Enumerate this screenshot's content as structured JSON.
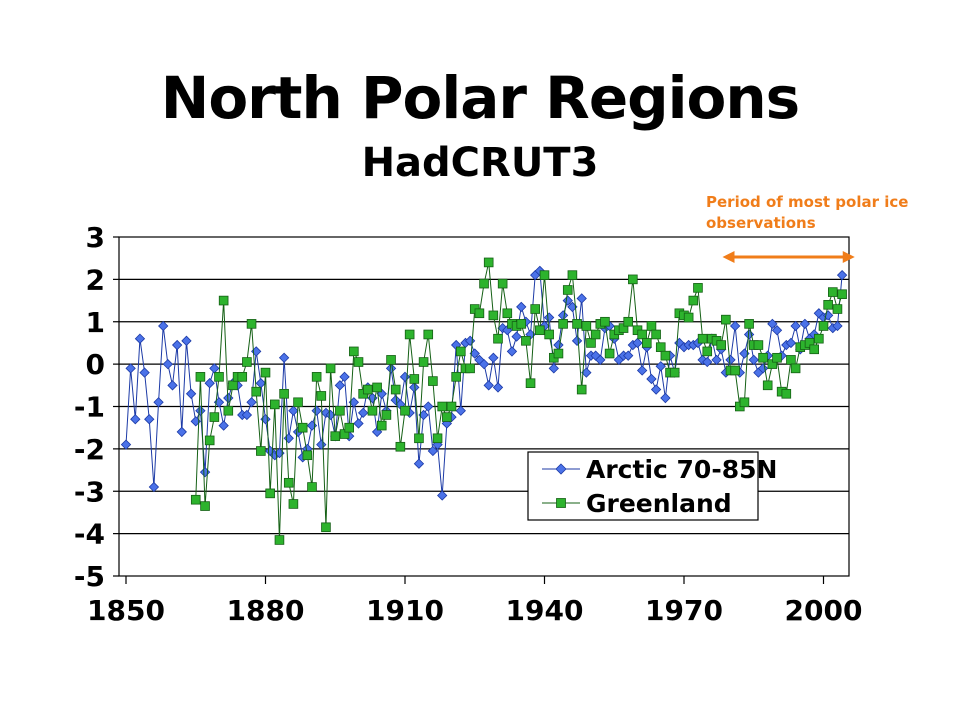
{
  "colors": {
    "arctic": "#4b72e8",
    "arctic_edge": "#1c3aa6",
    "greenland": "#2db32d",
    "greenland_edge": "#156015",
    "annotation": "#f07d1a"
  },
  "annotation": {
    "text": "Period of most polar ice observations",
    "arrow_x_range": [
      1980,
      2005
    ]
  },
  "chart_data": {
    "type": "line",
    "title": "North Polar Regions",
    "subtitle": "HadCRUT3",
    "xlabel": "",
    "ylabel": "",
    "xlim": [
      1850,
      2006
    ],
    "ylim": [
      -5,
      3
    ],
    "x_ticks": [
      1850,
      1880,
      1910,
      1940,
      1970,
      2000
    ],
    "y_ticks": [
      3,
      2,
      1,
      0,
      -1,
      -2,
      -3,
      -4,
      -5
    ],
    "y_tick_labels": [
      "3",
      "2",
      "1",
      "0",
      "-1",
      "-2",
      "-3",
      "-4",
      "-5"
    ],
    "grid": "horizontal",
    "legend": "bottom-right",
    "series": [
      {
        "name": "Arctic 70-85N",
        "marker": "diamond",
        "x_start": 1850,
        "values": [
          -1.9,
          -0.1,
          -1.3,
          0.6,
          -0.2,
          -1.3,
          -2.9,
          -0.9,
          0.9,
          0.0,
          -0.5,
          0.45,
          -1.6,
          0.55,
          -0.7,
          -1.35,
          -1.1,
          -2.55,
          -0.45,
          -0.1,
          -0.9,
          -1.45,
          -0.8,
          -0.45,
          -0.5,
          -1.2,
          -1.2,
          -0.9,
          0.3,
          -0.45,
          -1.3,
          -2.05,
          -2.15,
          -2.1,
          0.15,
          -1.75,
          -1.1,
          -1.6,
          -2.2,
          -2.0,
          -1.45,
          -1.1,
          -1.9,
          -1.15,
          -1.2,
          -1.7,
          -0.5,
          -0.3,
          -1.7,
          -0.9,
          -1.4,
          -1.15,
          -0.55,
          -0.8,
          -1.6,
          -0.7,
          -1.1,
          -0.1,
          -0.85,
          -0.95,
          -0.3,
          -1.15,
          -0.55,
          -2.35,
          -1.2,
          -1.0,
          -2.05,
          -1.9,
          -3.1,
          -1.4,
          -1.25,
          0.45,
          -1.1,
          0.5,
          0.55,
          0.25,
          0.1,
          0.0,
          -0.5,
          0.15,
          -0.55,
          0.85,
          0.8,
          0.3,
          0.65,
          1.35,
          1.0,
          0.7,
          2.1,
          2.2,
          0.9,
          1.1,
          -0.1,
          0.45,
          1.15,
          1.5,
          1.35,
          0.55,
          1.55,
          -0.2,
          0.2,
          0.2,
          0.1,
          0.85,
          0.9,
          0.6,
          0.1,
          0.2,
          0.2,
          0.45,
          0.5,
          -0.15,
          0.4,
          -0.35,
          -0.6,
          -0.05,
          -0.8,
          0.2,
          -0.2,
          0.5,
          0.4,
          0.45,
          0.45,
          0.5,
          0.1,
          0.05,
          0.6,
          0.1,
          0.35,
          -0.2,
          0.1,
          0.9,
          -0.2,
          0.25,
          0.7,
          0.1,
          -0.2,
          -0.1,
          0.2,
          0.95,
          0.8,
          0.2,
          0.45,
          0.5,
          0.9,
          0.35,
          0.95,
          0.6,
          0.7,
          1.2,
          1.1,
          1.15,
          0.85,
          0.9,
          2.1
        ]
      },
      {
        "name": "Greenland",
        "marker": "square",
        "x_start": 1865,
        "values": [
          -3.2,
          -0.3,
          -3.35,
          -1.8,
          -1.25,
          -0.3,
          1.5,
          -1.1,
          -0.5,
          -0.3,
          -0.3,
          0.05,
          0.95,
          -0.65,
          -2.05,
          -0.2,
          -3.05,
          -0.95,
          -4.15,
          -0.7,
          -2.8,
          -3.3,
          -0.9,
          -1.5,
          -2.15,
          -2.9,
          -0.3,
          -0.75,
          -3.85,
          -0.1,
          -1.7,
          -1.1,
          -1.65,
          -1.5,
          0.3,
          0.05,
          -0.7,
          -0.6,
          -1.1,
          -0.55,
          -1.45,
          -1.2,
          0.1,
          -0.6,
          -1.95,
          -1.1,
          0.7,
          -0.35,
          -1.75,
          0.05,
          0.7,
          -0.4,
          -1.75,
          -1.0,
          -1.25,
          -1.0,
          -0.3,
          0.3,
          -0.1,
          -0.1,
          1.3,
          1.2,
          1.9,
          2.4,
          1.15,
          0.6,
          1.9,
          1.2,
          0.95,
          0.9,
          0.95,
          0.55,
          -0.45,
          1.3,
          0.8,
          2.1,
          0.7,
          0.15,
          0.25,
          0.95,
          1.75,
          2.1,
          0.95,
          -0.6,
          0.9,
          0.5,
          0.7,
          0.95,
          1.0,
          0.25,
          0.7,
          0.8,
          0.85,
          1.0,
          2.0,
          0.8,
          0.7,
          0.5,
          0.9,
          0.7,
          0.4,
          0.2,
          -0.2,
          -0.2,
          1.2,
          1.15,
          1.1,
          1.5,
          1.8,
          0.6,
          0.3,
          0.6,
          0.55,
          0.45,
          1.05,
          -0.15,
          -0.15,
          -1.0,
          -0.9,
          0.95,
          0.45,
          0.45,
          0.15,
          -0.5,
          0.0,
          0.15,
          -0.65,
          -0.7,
          0.1,
          -0.1,
          0.4,
          0.45,
          0.5,
          0.35,
          0.6,
          0.9,
          1.4,
          1.7,
          1.3,
          1.65
        ]
      }
    ]
  }
}
